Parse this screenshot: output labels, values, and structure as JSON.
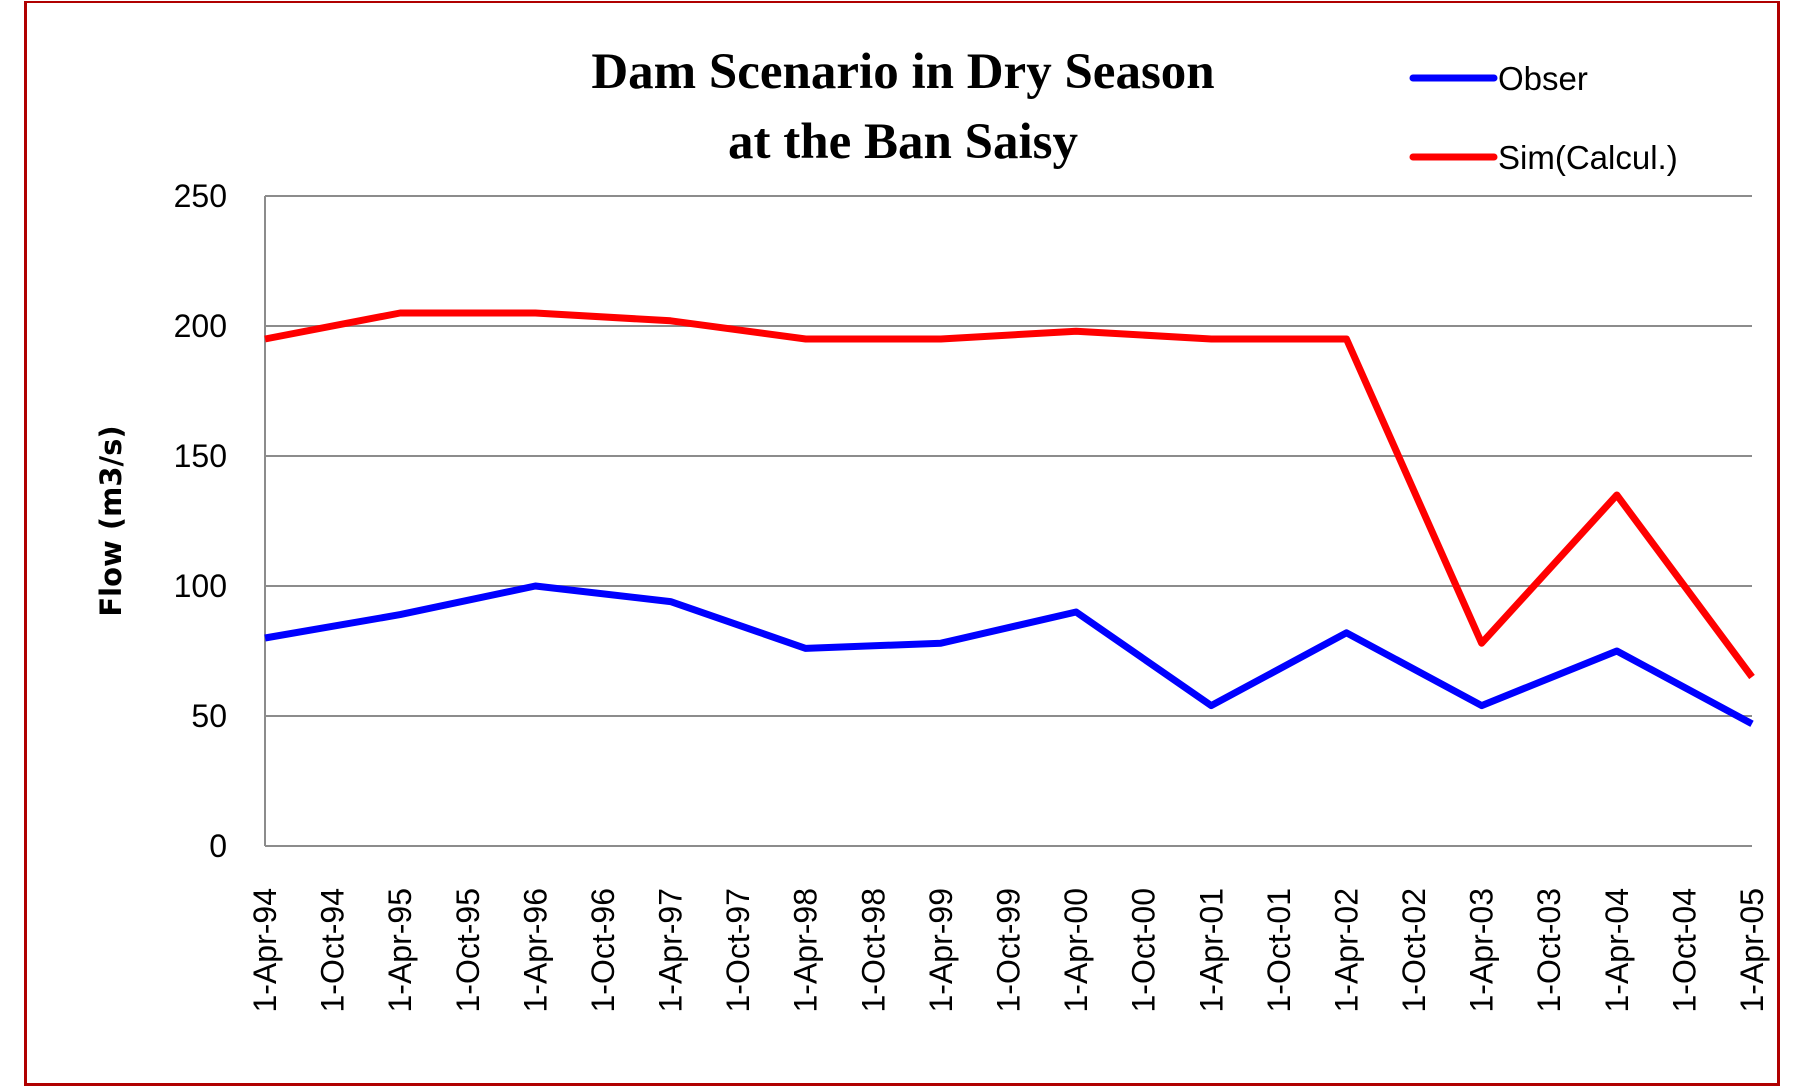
{
  "chart_data": {
    "type": "line",
    "title": [
      "Dam Scenario in Dry Season",
      "at the Ban Saisy"
    ],
    "xlabel": "",
    "ylabel": "Flow (m3/s)",
    "ylim": [
      0,
      250
    ],
    "yticks": [
      0,
      50,
      100,
      150,
      200,
      250
    ],
    "grid": true,
    "legend_position": "top-right",
    "categories": [
      "1-Apr-94",
      "1-Oct-94",
      "1-Apr-95",
      "1-Oct-95",
      "1-Apr-96",
      "1-Oct-96",
      "1-Apr-97",
      "1-Oct-97",
      "1-Apr-98",
      "1-Oct-98",
      "1-Apr-99",
      "1-Oct-99",
      "1-Apr-00",
      "1-Oct-00",
      "1-Apr-01",
      "1-Oct-01",
      "1-Apr-02",
      "1-Oct-02",
      "1-Apr-03",
      "1-Oct-03",
      "1-Apr-04",
      "1-Oct-04",
      "1-Apr-05"
    ],
    "series": [
      {
        "name": "Obser",
        "color": "#0000ff",
        "values": [
          80,
          null,
          89,
          null,
          100,
          null,
          94,
          null,
          76,
          null,
          78,
          null,
          90,
          null,
          54,
          null,
          82,
          null,
          54,
          null,
          75,
          null,
          47
        ]
      },
      {
        "name": "Sim(Calcul.)",
        "color": "#ff0000",
        "values": [
          195,
          null,
          205,
          null,
          205,
          null,
          202,
          null,
          195,
          null,
          195,
          null,
          198,
          null,
          195,
          null,
          195,
          null,
          78,
          null,
          135,
          null,
          65
        ]
      }
    ]
  },
  "frame_color": "#b00000"
}
